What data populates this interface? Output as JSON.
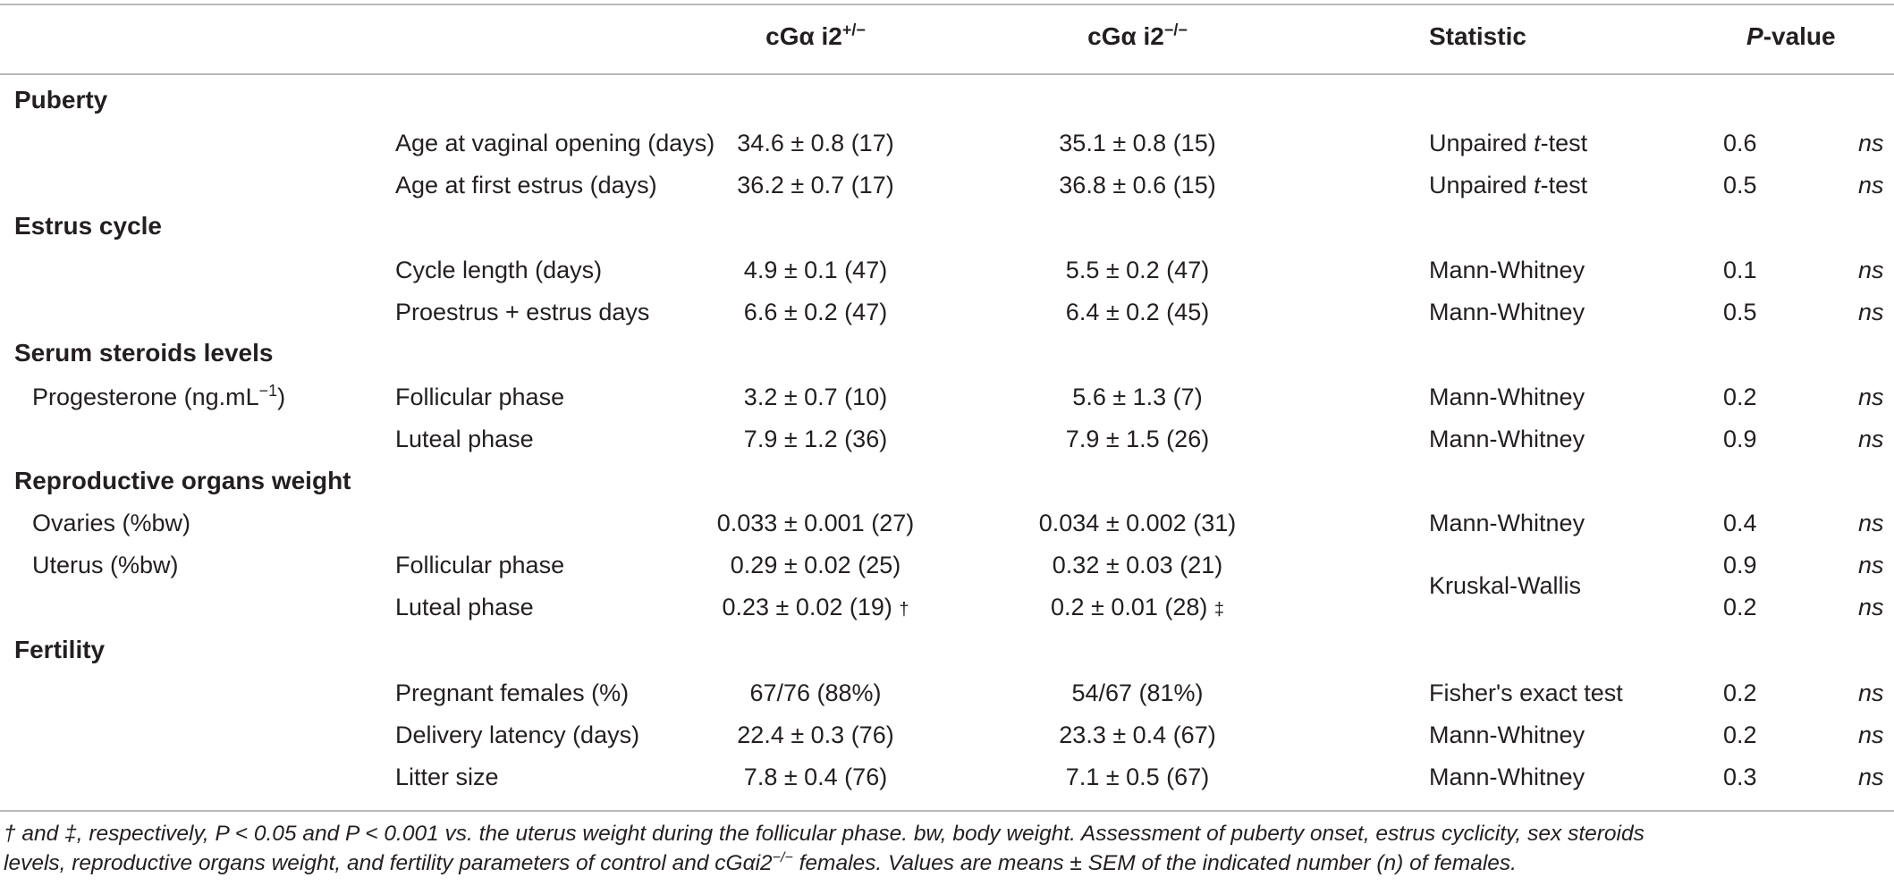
{
  "header": {
    "group1_prefix": "cGα i2",
    "group1_sup": "+/−",
    "group2_prefix": "cGα i2",
    "group2_sup": "−/−",
    "statistic": "Statistic",
    "pvalue_italic": "P",
    "pvalue_rest": "-value"
  },
  "sections": {
    "puberty": "Puberty",
    "estrus": "Estrus cycle",
    "serum": "Serum steroids levels",
    "organs": "Reproductive organs weight",
    "fertility": "Fertility"
  },
  "rows": [
    {
      "group": "",
      "param": "Age at vaginal opening (days)",
      "g1": "34.6 ± 0.8 (17)",
      "g2": "35.1 ± 0.8 (15)",
      "stat_pre": "Unpaired ",
      "stat_it": "t",
      "stat_post": "-test",
      "p": "0.6",
      "sig": "ns"
    },
    {
      "group": "",
      "param": "Age at first estrus (days)",
      "g1": "36.2 ± 0.7 (17)",
      "g2": "36.8 ± 0.6 (15)",
      "stat_pre": "Unpaired ",
      "stat_it": "t",
      "stat_post": "-test",
      "p": "0.5",
      "sig": "ns"
    },
    {
      "group": "",
      "param": "Cycle length (days)",
      "g1": "4.9 ± 0.1 (47)",
      "g2": "5.5 ± 0.2 (47)",
      "stat": "Mann-Whitney",
      "p": "0.1",
      "sig": "ns"
    },
    {
      "group": "",
      "param": "Proestrus + estrus days",
      "g1": "6.6 ± 0.2 (47)",
      "g2": "6.4 ± 0.2 (45)",
      "stat": "Mann-Whitney",
      "p": "0.5",
      "sig": "ns"
    },
    {
      "group_prefix": "Progesterone (ng.mL",
      "group_sup": "−1",
      "group_suffix": ")",
      "param": "Follicular phase",
      "g1": "3.2 ± 0.7 (10)",
      "g2": "5.6 ± 1.3 (7)",
      "stat": "Mann-Whitney",
      "p": "0.2",
      "sig": "ns"
    },
    {
      "group": "",
      "param": "Luteal phase",
      "g1": "7.9 ± 1.2 (36)",
      "g2": "7.9 ± 1.5 (26)",
      "stat": "Mann-Whitney",
      "p": "0.9",
      "sig": "ns"
    },
    {
      "group": "Ovaries (%bw)",
      "param": "",
      "g1": "0.033 ± 0.001 (27)",
      "g2": "0.034 ± 0.002 (31)",
      "stat": "Mann-Whitney",
      "p": "0.4",
      "sig": "ns"
    },
    {
      "group": "Uterus (%bw)",
      "param": "Follicular phase",
      "g1": "0.29 ± 0.02 (25)",
      "g2": "0.32 ± 0.03 (21)",
      "stat": "",
      "p": "0.9",
      "sig": "ns"
    },
    {
      "group": "",
      "param": "Luteal phase",
      "g1": "0.23 ± 0.02 (19)",
      "g1_mark": "†",
      "g2": "0.2 ± 0.01 (28)",
      "g2_mark": "‡",
      "stat": "",
      "p": "0.2",
      "sig": "ns"
    },
    {
      "group": "",
      "param": "Pregnant females (%)",
      "g1": "67/76 (88%)",
      "g2": "54/67 (81%)",
      "stat": "Fisher's exact test",
      "p": "0.2",
      "sig": "ns"
    },
    {
      "group": "",
      "param": "Delivery latency (days)",
      "g1": "22.4 ± 0.3 (76)",
      "g2": "23.3 ± 0.4 (67)",
      "stat": "Mann-Whitney",
      "p": "0.2",
      "sig": "ns"
    },
    {
      "group": "",
      "param": "Litter size",
      "g1": "7.8 ± 0.4 (76)",
      "g2": "7.1 ± 0.5 (67)",
      "stat": "Mann-Whitney",
      "p": "0.3",
      "sig": "ns"
    }
  ],
  "uterus_statistic": "Kruskal-Wallis",
  "footnote": {
    "line1_pre": "† and ‡, respectively, ",
    "p1": "P < 0.05 and P < 0.001 vs. the uterus weight during the follicular phase. bw, body weight. Assessment of puberty onset, estrus cyclicity, sex steroids",
    "line2_pre": "levels, reproductive organs weight, and fertility parameters of control and cGαi2",
    "line2_sup": "−/−",
    "line2_post": " females. Values are means ± SEM of the indicated number (n) of females."
  }
}
